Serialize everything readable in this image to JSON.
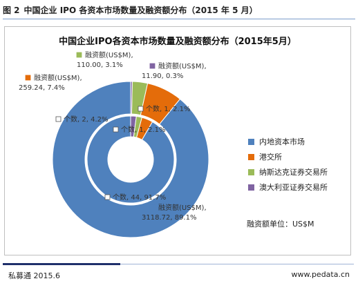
{
  "figure": {
    "label": "图 2",
    "caption": "中国企业 IPO 各资本市场数量及融资额分布（2015 年 5 月）"
  },
  "chart_data": {
    "type": "donut",
    "title": "中国企业IPO各资本市场数量及融资额分布（2015年5月）",
    "categories": [
      "内地资本市场",
      "港交所",
      "纳斯达克证券交易所",
      "澳大利亚证券交易所"
    ],
    "colors": [
      "#4f81bd",
      "#e46c0a",
      "#9bbb59",
      "#8064a2"
    ],
    "series": [
      {
        "name": "个数",
        "ring": "inner",
        "values": [
          44,
          2,
          1,
          1
        ],
        "percents": [
          "91.7%",
          "4.2%",
          "2.1%",
          "2.1%"
        ],
        "labels": [
          "个数, 44, 91.7%",
          "个数, 2, 4.2%",
          "个数, 1, 2.1%",
          "个数, 1, 2.1%"
        ]
      },
      {
        "name": "融资额(US$M)",
        "ring": "outer",
        "values": [
          3118.72,
          259.24,
          110.0,
          11.9
        ],
        "percents": [
          "89.1%",
          "7.4%",
          "3.1%",
          "0.3%"
        ],
        "labels": [
          "融资额(US$M),\n3118.72, 89.1%",
          "融资额(US$M),\n259.24, 7.4%",
          "融资额(US$M),\n110.00, 3.1%",
          "融资额(US$M),\n11.90, 0.3%"
        ]
      }
    ],
    "legend_position": "right",
    "unit_note": "融资额单位：US$M"
  },
  "footer": {
    "source": "私募通 2015.6",
    "website": "www.pedata.cn"
  }
}
